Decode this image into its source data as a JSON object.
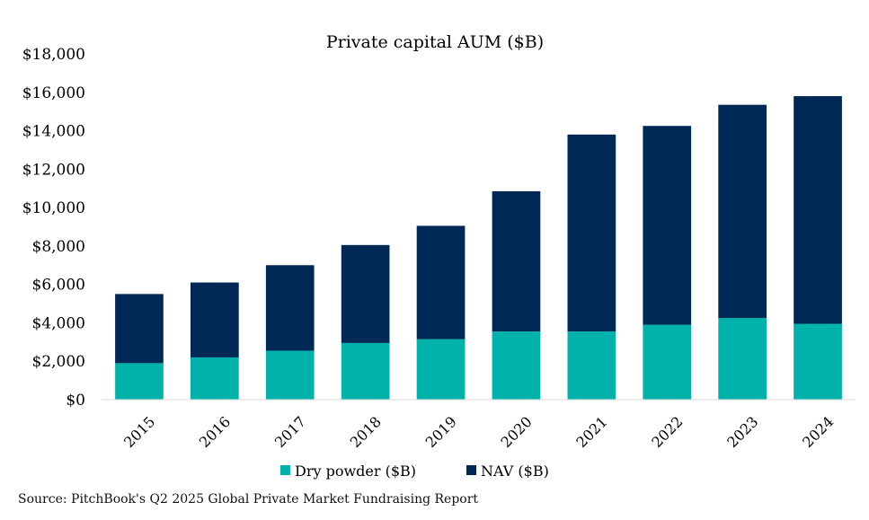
{
  "source_note": "Source: PitchBook's Q2 2025 Global Private Market Fundraising Report",
  "chart_data": {
    "type": "bar",
    "stacked": true,
    "title": "Private capital AUM ($B)",
    "xlabel": "",
    "ylabel": "",
    "categories": [
      "2015",
      "2016",
      "2017",
      "2018",
      "2019",
      "2020",
      "2021",
      "2022",
      "2023",
      "2024"
    ],
    "series": [
      {
        "name": "Dry powder ($B)",
        "color": "#00B2A9",
        "values": [
          1900,
          2200,
          2550,
          2950,
          3150,
          3550,
          3550,
          3900,
          4250,
          3950
        ]
      },
      {
        "name": "NAV ($B)",
        "color": "#002855",
        "values": [
          3600,
          3900,
          4450,
          5100,
          5900,
          7300,
          10250,
          10350,
          11100,
          11850
        ]
      }
    ],
    "ylim": [
      0,
      18000
    ],
    "y_ticks": [
      0,
      2000,
      4000,
      6000,
      8000,
      10000,
      12000,
      14000,
      16000,
      18000
    ],
    "y_tick_labels": [
      "$0",
      "$2,000",
      "$4,000",
      "$6,000",
      "$8,000",
      "$10,000",
      "$12,000",
      "$14,000",
      "$16,000",
      "$18,000"
    ],
    "grid": false,
    "legend_position": "bottom"
  }
}
